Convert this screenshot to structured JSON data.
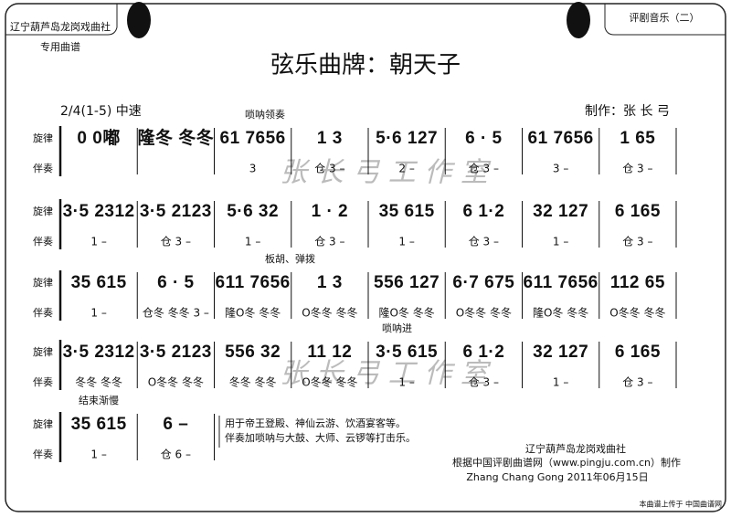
{
  "header": {
    "society": "辽宁葫芦岛龙岗戏曲社",
    "usage": "专用曲谱",
    "series": "评剧音乐（二）",
    "title": "弦乐曲牌：朝天子",
    "tempo": "2/4(1-5) 中速",
    "author": "制作：张 长 弓",
    "watermark": "张 长 弓 工 作 室"
  },
  "row_labels": [
    "旋律",
    "伴奏"
  ],
  "systems": [
    {
      "annotation": "唢呐领奏",
      "measures": [
        {
          "melody": "0  0嘟",
          "accomp": ""
        },
        {
          "melody": "隆冬 冬冬",
          "accomp": ""
        },
        {
          "melody": "61 7656",
          "accomp": "3"
        },
        {
          "melody": "1   3",
          "accomp": "仓  3  –"
        },
        {
          "melody": "5·6 127",
          "accomp": "2  –"
        },
        {
          "melody": "6 · 5",
          "accomp": "仓  3  –"
        },
        {
          "melody": "61 7656",
          "accomp": "3  –"
        },
        {
          "melody": "1  65",
          "accomp": "仓  3  –"
        }
      ]
    },
    {
      "measures": [
        {
          "melody": "3·5 2312",
          "accomp": "1  –"
        },
        {
          "melody": "3·5 2123",
          "accomp": "仓  3  –"
        },
        {
          "melody": "5·6  32",
          "accomp": "1  –"
        },
        {
          "melody": "1 · 2",
          "accomp": "仓  3  –"
        },
        {
          "melody": "35  615",
          "accomp": "1  –"
        },
        {
          "melody": "6  1·2",
          "accomp": "仓  3  –"
        },
        {
          "melody": "32  127",
          "accomp": "1  –"
        },
        {
          "melody": "6  165",
          "accomp": "仓  3  –"
        }
      ]
    },
    {
      "annotation": "板胡、弹拨",
      "measures": [
        {
          "melody": "35  615",
          "accomp": "1  –"
        },
        {
          "melody": "6 · 5",
          "accomp": "仓冬 冬冬  3 –"
        },
        {
          "melody": "611 7656",
          "accomp": "隆O冬  冬冬"
        },
        {
          "melody": "1   3",
          "accomp": "O冬冬 冬冬"
        },
        {
          "melody": "556 127",
          "accomp": "隆O冬  冬冬"
        },
        {
          "melody": "6·7 675",
          "accomp": "O冬冬 冬冬"
        },
        {
          "melody": "611 7656",
          "accomp": "隆O冬  冬冬"
        },
        {
          "melody": "112  65",
          "accomp": "O冬冬 冬冬"
        }
      ]
    },
    {
      "annotation": "唢呐进",
      "measures": [
        {
          "melody": "3·5 2312",
          "accomp": "冬冬  冬冬"
        },
        {
          "melody": "3·5 2123",
          "accomp": "O冬冬 冬冬"
        },
        {
          "melody": "556  32",
          "accomp": "冬冬  冬冬"
        },
        {
          "melody": "11  12",
          "accomp": "O冬冬 冬冬"
        },
        {
          "melody": "3·5  615",
          "accomp": "1  –"
        },
        {
          "melody": "6  1·2",
          "accomp": "仓  3  –"
        },
        {
          "melody": "32  127",
          "accomp": "1  –"
        },
        {
          "melody": "6  165",
          "accomp": "仓  3  –"
        }
      ]
    },
    {
      "annotation": "结束渐慢",
      "measures": [
        {
          "melody": "35  615",
          "accomp": "1  –"
        },
        {
          "melody": "6   –",
          "accomp": "仓  6  –"
        }
      ]
    }
  ],
  "notes": [
    "用于帝王登殿、神仙云游、饮酒宴客等。",
    "伴奏加唢呐与大鼓、大师、云锣等打击乐。"
  ],
  "footer": {
    "society": "辽宁葫芦岛龙岗戏曲社",
    "source": "根据中国评剧曲谱网（www.pingju.com.cn）制作",
    "date": "Zhang Chang Gong  2011年06月15日",
    "upload": "本曲谱上传于 中国曲谱网"
  }
}
